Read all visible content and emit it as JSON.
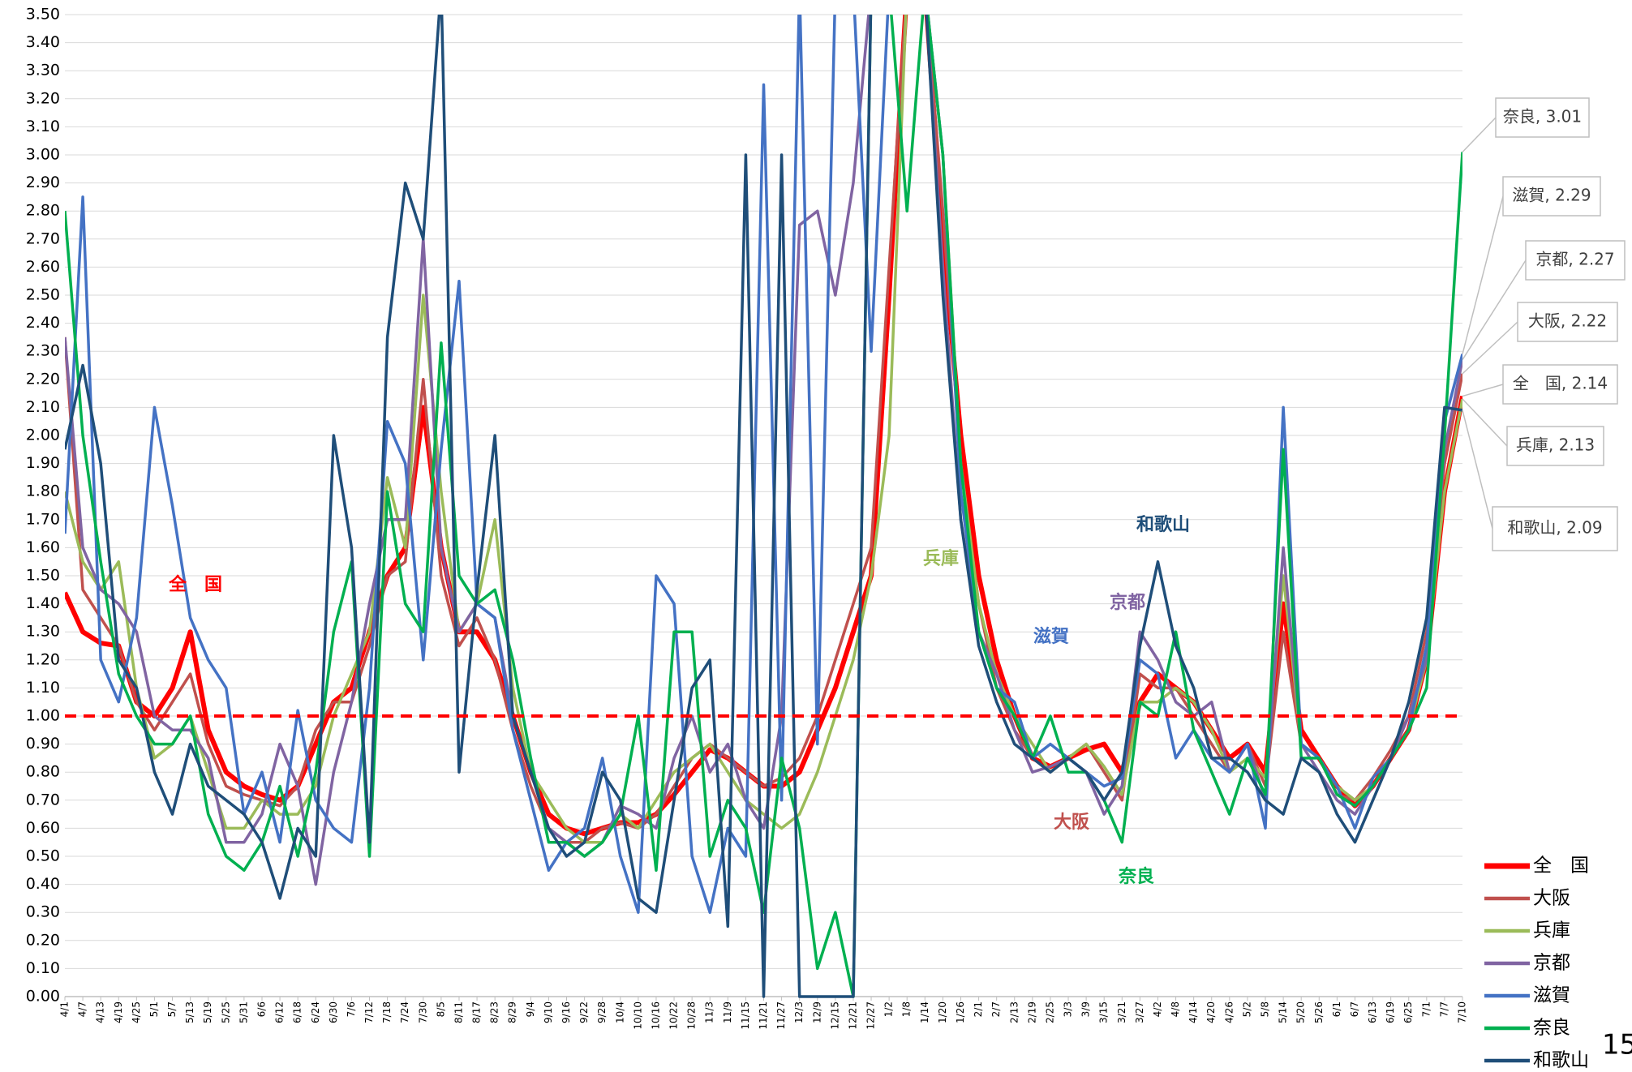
{
  "chart_data": {
    "type": "line",
    "categories": [
      "4/1",
      "4/7",
      "4/13",
      "4/19",
      "4/25",
      "5/1",
      "5/7",
      "5/13",
      "5/19",
      "5/25",
      "5/31",
      "6/6",
      "6/12",
      "6/18",
      "6/24",
      "6/30",
      "7/6",
      "7/12",
      "7/18",
      "7/24",
      "7/30",
      "8/5",
      "8/11",
      "8/17",
      "8/23",
      "8/29",
      "9/4",
      "9/10",
      "9/16",
      "9/22",
      "9/28",
      "10/4",
      "10/10",
      "10/16",
      "10/22",
      "10/28",
      "11/3",
      "11/9",
      "11/15",
      "11/21",
      "11/27",
      "12/3",
      "12/9",
      "12/15",
      "12/21",
      "12/27",
      "1/2",
      "1/8",
      "1/14",
      "1/20",
      "1/26",
      "2/1",
      "2/7",
      "2/13",
      "2/19",
      "2/25",
      "3/3",
      "3/9",
      "3/15",
      "3/21",
      "3/27",
      "4/2",
      "4/8",
      "4/14",
      "4/20",
      "4/26",
      "5/2",
      "5/8",
      "5/14",
      "5/20",
      "5/26",
      "6/1",
      "6/7",
      "6/13",
      "6/19",
      "6/25",
      "7/1",
      "7/7",
      "7/10"
    ],
    "series": [
      {
        "name": "全　国",
        "color": "#ff0000",
        "width": 6,
        "values": [
          1.44,
          1.3,
          1.26,
          1.25,
          1.05,
          1.0,
          1.1,
          1.3,
          0.95,
          0.8,
          0.75,
          0.72,
          0.7,
          0.75,
          0.9,
          1.05,
          1.1,
          1.3,
          1.5,
          1.6,
          2.1,
          1.6,
          1.3,
          1.3,
          1.2,
          1.0,
          0.8,
          0.65,
          0.6,
          0.58,
          0.6,
          0.62,
          0.62,
          0.65,
          0.72,
          0.8,
          0.88,
          0.85,
          0.8,
          0.75,
          0.75,
          0.8,
          0.95,
          1.1,
          1.3,
          1.5,
          2.5,
          3.6,
          3.6,
          2.7,
          2.0,
          1.5,
          1.2,
          1.0,
          0.85,
          0.82,
          0.85,
          0.88,
          0.9,
          0.8,
          1.05,
          1.15,
          1.1,
          1.05,
          0.95,
          0.85,
          0.9,
          0.8,
          1.4,
          0.95,
          0.85,
          0.75,
          0.68,
          0.75,
          0.85,
          0.95,
          1.2,
          1.8,
          2.14
        ]
      },
      {
        "name": "大阪",
        "color": "#c0504d",
        "width": 3.5,
        "values": [
          2.35,
          1.45,
          1.35,
          1.25,
          1.05,
          0.95,
          1.05,
          1.15,
          0.9,
          0.75,
          0.72,
          0.7,
          0.68,
          0.75,
          0.95,
          1.05,
          1.05,
          1.25,
          1.5,
          1.55,
          2.2,
          1.5,
          1.25,
          1.35,
          1.2,
          0.95,
          0.75,
          0.6,
          0.55,
          0.55,
          0.6,
          0.62,
          0.6,
          0.65,
          0.75,
          0.85,
          0.9,
          0.85,
          0.8,
          0.75,
          0.78,
          0.85,
          1.0,
          1.2,
          1.4,
          1.6,
          2.6,
          3.6,
          3.6,
          2.8,
          1.9,
          1.4,
          1.1,
          0.95,
          0.85,
          0.8,
          0.85,
          0.9,
          0.8,
          0.7,
          1.15,
          1.1,
          1.1,
          1.0,
          0.9,
          0.8,
          0.9,
          0.75,
          1.3,
          0.9,
          0.85,
          0.72,
          0.7,
          0.78,
          0.88,
          1.0,
          1.3,
          1.9,
          2.22
        ]
      },
      {
        "name": "兵庫",
        "color": "#9bbb59",
        "width": 3.5,
        "values": [
          1.8,
          1.55,
          1.45,
          1.55,
          1.1,
          0.85,
          0.9,
          1.0,
          0.8,
          0.6,
          0.6,
          0.7,
          0.65,
          0.65,
          0.75,
          1.0,
          1.15,
          1.3,
          1.85,
          1.6,
          2.5,
          1.8,
          1.3,
          1.4,
          1.7,
          1.1,
          0.8,
          0.7,
          0.6,
          0.55,
          0.55,
          0.65,
          0.6,
          0.7,
          0.8,
          0.85,
          0.9,
          0.8,
          0.7,
          0.65,
          0.6,
          0.65,
          0.8,
          1.0,
          1.2,
          1.5,
          2.0,
          3.6,
          3.6,
          3.0,
          1.9,
          1.4,
          1.15,
          1.0,
          0.9,
          0.8,
          0.85,
          0.9,
          0.82,
          0.72,
          1.05,
          1.05,
          1.1,
          1.05,
          0.95,
          0.8,
          0.85,
          0.78,
          1.5,
          0.9,
          0.85,
          0.75,
          0.7,
          0.75,
          0.85,
          0.95,
          1.2,
          1.8,
          2.13
        ]
      },
      {
        "name": "京都",
        "color": "#8064a2",
        "width": 3.5,
        "values": [
          2.35,
          1.6,
          1.45,
          1.4,
          1.3,
          1.0,
          0.95,
          0.95,
          0.85,
          0.55,
          0.55,
          0.65,
          0.9,
          0.75,
          0.4,
          0.8,
          1.05,
          1.4,
          1.7,
          1.7,
          2.7,
          1.6,
          1.3,
          1.4,
          1.35,
          1.0,
          0.8,
          0.6,
          0.55,
          0.5,
          0.55,
          0.68,
          0.65,
          0.6,
          0.85,
          1.0,
          0.8,
          0.9,
          0.7,
          0.6,
          1.0,
          2.75,
          2.8,
          2.5,
          2.9,
          3.6,
          3.6,
          3.6,
          3.6,
          2.6,
          1.7,
          1.3,
          1.15,
          0.95,
          0.8,
          0.82,
          0.85,
          0.8,
          0.65,
          0.75,
          1.3,
          1.2,
          1.05,
          1.0,
          1.05,
          0.8,
          0.9,
          0.7,
          1.6,
          0.9,
          0.8,
          0.7,
          0.65,
          0.75,
          0.85,
          1.0,
          1.2,
          1.95,
          2.27
        ]
      },
      {
        "name": "滋賀",
        "color": "#4472c4",
        "width": 3.5,
        "values": [
          1.65,
          2.85,
          1.2,
          1.05,
          1.35,
          2.1,
          1.75,
          1.35,
          1.2,
          1.1,
          0.65,
          0.8,
          0.55,
          1.02,
          0.7,
          0.6,
          0.55,
          1.1,
          2.05,
          1.9,
          1.2,
          1.95,
          2.55,
          1.4,
          1.35,
          0.95,
          0.7,
          0.45,
          0.55,
          0.6,
          0.85,
          0.5,
          0.3,
          1.5,
          1.4,
          0.5,
          0.3,
          0.6,
          0.5,
          3.25,
          0.7,
          3.6,
          0.9,
          3.6,
          3.6,
          2.3,
          3.6,
          3.6,
          3.6,
          3.0,
          1.8,
          1.3,
          1.1,
          1.05,
          0.85,
          0.9,
          0.85,
          0.8,
          0.75,
          0.78,
          1.2,
          1.15,
          0.85,
          0.95,
          0.85,
          0.8,
          0.9,
          0.6,
          2.1,
          0.9,
          0.85,
          0.75,
          0.6,
          0.78,
          0.85,
          0.95,
          1.25,
          2.05,
          2.29
        ]
      },
      {
        "name": "奈良",
        "color": "#00b050",
        "width": 3.5,
        "values": [
          2.8,
          2.0,
          1.55,
          1.15,
          1.0,
          0.9,
          0.9,
          1.0,
          0.65,
          0.5,
          0.45,
          0.55,
          0.75,
          0.5,
          0.8,
          1.3,
          1.55,
          0.5,
          1.8,
          1.4,
          1.3,
          2.33,
          1.5,
          1.4,
          1.45,
          1.2,
          0.85,
          0.55,
          0.55,
          0.5,
          0.55,
          0.65,
          1.0,
          0.45,
          1.3,
          1.3,
          0.5,
          0.7,
          0.6,
          0.3,
          0.85,
          0.6,
          0.1,
          0.3,
          0.0,
          3.6,
          3.6,
          2.8,
          3.6,
          3.0,
          1.9,
          1.3,
          1.1,
          1.0,
          0.85,
          1.0,
          0.8,
          0.8,
          0.7,
          0.55,
          1.05,
          1.0,
          1.3,
          0.95,
          0.8,
          0.65,
          0.85,
          0.72,
          1.95,
          0.85,
          0.85,
          0.72,
          0.68,
          0.75,
          0.85,
          0.95,
          1.1,
          2.0,
          3.01
        ]
      },
      {
        "name": "和歌山",
        "color": "#1f4e79",
        "width": 3.5,
        "values": [
          1.95,
          2.25,
          1.9,
          1.2,
          1.1,
          0.8,
          0.65,
          0.9,
          0.75,
          0.7,
          0.65,
          0.55,
          0.35,
          0.6,
          0.5,
          2.0,
          1.6,
          0.55,
          2.35,
          2.9,
          2.7,
          3.6,
          0.8,
          1.45,
          2.0,
          1.0,
          0.8,
          0.6,
          0.5,
          0.55,
          0.8,
          0.7,
          0.35,
          0.3,
          0.7,
          1.1,
          1.2,
          0.25,
          3.0,
          0.0,
          3.0,
          0.0,
          0.0,
          0.0,
          0.0,
          3.6,
          3.6,
          3.6,
          3.6,
          2.5,
          1.7,
          1.25,
          1.05,
          0.9,
          0.85,
          0.8,
          0.85,
          0.8,
          0.7,
          0.8,
          1.25,
          1.55,
          1.25,
          1.1,
          0.85,
          0.85,
          0.8,
          0.7,
          0.65,
          0.85,
          0.8,
          0.65,
          0.55,
          0.7,
          0.85,
          1.05,
          1.35,
          2.1,
          2.09
        ]
      }
    ],
    "ylim": [
      0,
      3.5
    ],
    "yticks": [
      {
        "value": 0,
        "label": "0.00"
      },
      {
        "value": 0.1,
        "label": "0.10"
      },
      {
        "value": 0.2,
        "label": "0.20"
      },
      {
        "value": 0.3,
        "label": "0.30"
      },
      {
        "value": 0.4,
        "label": "0.40"
      },
      {
        "value": 0.5,
        "label": "0.50"
      },
      {
        "value": 0.6,
        "label": "0.60"
      },
      {
        "value": 0.7,
        "label": "0.70"
      },
      {
        "value": 0.8,
        "label": "0.80"
      },
      {
        "value": 0.9,
        "label": "0.90"
      },
      {
        "value": 1,
        "label": "1.00"
      },
      {
        "value": 1.1,
        "label": "1.10"
      },
      {
        "value": 1.2,
        "label": "1.20"
      },
      {
        "value": 1.3,
        "label": "1.30"
      },
      {
        "value": 1.4,
        "label": "1.40"
      },
      {
        "value": 1.5,
        "label": "1.50"
      },
      {
        "value": 1.6,
        "label": "1.60"
      },
      {
        "value": 1.7,
        "label": "1.70"
      },
      {
        "value": 1.8,
        "label": "1.80"
      },
      {
        "value": 1.9,
        "label": "1.90"
      },
      {
        "value": 2,
        "label": "2.00"
      },
      {
        "value": 2.1,
        "label": "2.10"
      },
      {
        "value": 2.2,
        "label": "2.20"
      },
      {
        "value": 2.3,
        "label": "2.30"
      },
      {
        "value": 2.4,
        "label": "2.40"
      },
      {
        "value": 2.5,
        "label": "2.50"
      },
      {
        "value": 2.6,
        "label": "2.60"
      },
      {
        "value": 2.7,
        "label": "2.70"
      },
      {
        "value": 2.8,
        "label": "2.80"
      },
      {
        "value": 2.9,
        "label": "2.90"
      },
      {
        "value": 3,
        "label": "3.00"
      },
      {
        "value": 3.1,
        "label": "3.10"
      },
      {
        "value": 3.2,
        "label": "3.20"
      },
      {
        "value": 3.3,
        "label": "3.30"
      },
      {
        "value": 3.4,
        "label": "3.40"
      },
      {
        "value": 3.5,
        "label": "3.50"
      }
    ],
    "grid": true,
    "reference_line": {
      "value": 1,
      "color": "#ff0000"
    },
    "series_labels": [
      {
        "text": "全　国",
        "color": "#ff0000"
      },
      {
        "text": "兵庫",
        "color": "#9bbb59"
      },
      {
        "text": "京都",
        "color": "#8064a2"
      },
      {
        "text": "滋賀",
        "color": "#4472c4"
      },
      {
        "text": "和歌山",
        "color": "#1f4e79"
      },
      {
        "text": "大阪",
        "color": "#c0504d"
      },
      {
        "text": "奈良",
        "color": "#00b050"
      }
    ],
    "annotations": [
      {
        "text": "奈良, 3.01",
        "x": "7/10",
        "y": 3.01
      },
      {
        "text": "滋賀, 2.29",
        "x": "7/10",
        "y": 2.29
      },
      {
        "text": "京都, 2.27",
        "x": "7/10",
        "y": 2.27
      },
      {
        "text": "大阪, 2.22",
        "x": "7/10",
        "y": 2.22
      },
      {
        "text": "全　国, 2.14",
        "x": "7/10",
        "y": 2.14
      },
      {
        "text": "兵庫, 2.13",
        "x": "7/10",
        "y": 2.13
      },
      {
        "text": "和歌山, 2.09",
        "x": "7/10",
        "y": 2.09
      }
    ],
    "legend": "bottom-right"
  },
  "page_number": "15"
}
